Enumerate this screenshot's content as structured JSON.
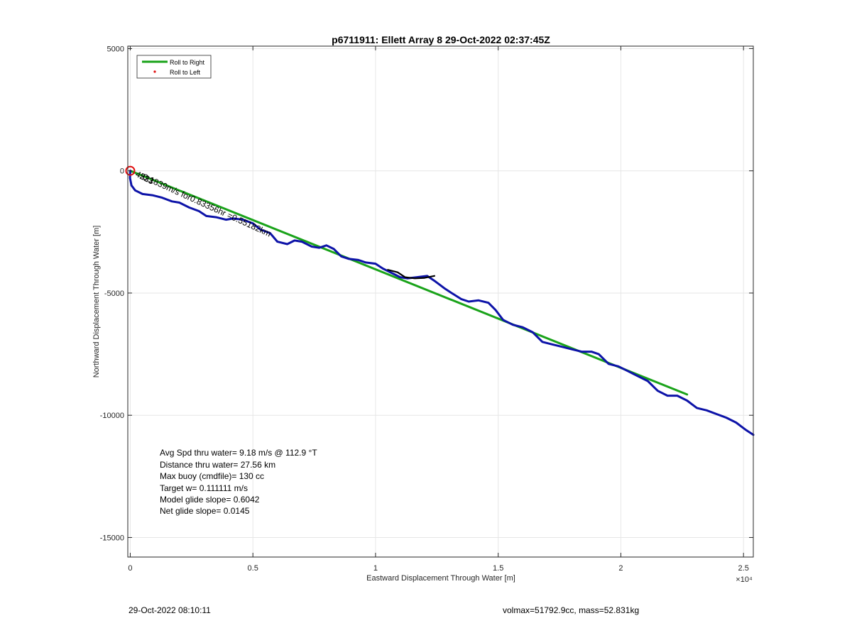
{
  "chart_data": {
    "type": "line",
    "title": "p6711911: Ellett Array 8 29-Oct-2022 02:37:45Z",
    "xlabel": "Eastward Displacement Through Water [m]",
    "ylabel": "Northward Displacement Through Water [m]",
    "x_exponent_label": "×10⁴",
    "xlim": [
      -0.01,
      2.54
    ],
    "x_scale_factor": 10000,
    "ylim": [
      -15800,
      5100
    ],
    "xticks": [
      0,
      0.5,
      1,
      1.5,
      2,
      2.5
    ],
    "xtick_labels": [
      "0",
      "0.5",
      "1",
      "1.5",
      "2",
      "2.5"
    ],
    "yticks": [
      5000,
      0,
      -5000,
      -10000,
      -15000
    ],
    "ytick_labels": [
      "5000",
      "0",
      "-5000",
      "-10000",
      "-15000"
    ],
    "grid": true,
    "legend_position": "top-left",
    "legend": [
      {
        "label": "Roll to Right",
        "color": "#1aa31a",
        "style": "line"
      },
      {
        "label": "Roll to Left",
        "color": "#e01010",
        "style": "dot"
      }
    ],
    "series": [
      {
        "name": "Roll to Right",
        "color": "#1aa31a",
        "x": [
          0.0,
          2.27
        ],
        "y": [
          0,
          -9150
        ]
      },
      {
        "color": "#0d13a8",
        "x": [
          0.0,
          -0.001,
          0.005,
          0.02,
          0.05,
          0.09,
          0.13,
          0.17,
          0.2,
          0.24,
          0.28,
          0.31,
          0.35,
          0.39,
          0.42,
          0.46,
          0.5,
          0.53,
          0.57,
          0.6,
          0.64,
          0.67,
          0.7,
          0.74,
          0.77,
          0.8,
          0.83,
          0.86,
          0.89,
          0.93,
          0.96,
          1.0,
          1.03,
          1.07,
          1.1,
          1.13,
          1.17,
          1.21,
          1.24,
          1.28,
          1.31,
          1.35,
          1.38,
          1.42,
          1.46,
          1.49,
          1.52,
          1.56,
          1.6,
          1.64,
          1.68,
          1.72,
          1.76,
          1.8,
          1.84,
          1.88,
          1.91,
          1.95,
          1.99,
          2.03,
          2.07,
          2.11,
          2.15,
          2.19,
          2.23,
          2.27,
          2.31,
          2.35,
          2.39,
          2.43,
          2.47,
          2.51,
          2.54
        ],
        "y": [
          0,
          -300,
          -600,
          -800,
          -950,
          -1000,
          -1100,
          -1250,
          -1300,
          -1500,
          -1650,
          -1850,
          -1900,
          -2000,
          -1950,
          -2000,
          -2150,
          -2400,
          -2550,
          -2900,
          -3000,
          -2850,
          -2900,
          -3100,
          -3150,
          -3050,
          -3200,
          -3500,
          -3600,
          -3650,
          -3750,
          -3800,
          -4000,
          -4200,
          -4350,
          -4400,
          -4350,
          -4300,
          -4500,
          -4800,
          -5000,
          -5250,
          -5350,
          -5300,
          -5400,
          -5700,
          -6100,
          -6300,
          -6400,
          -6600,
          -7000,
          -7100,
          -7200,
          -7300,
          -7400,
          -7400,
          -7500,
          -7900,
          -8000,
          -8200,
          -8400,
          -8600,
          -9000,
          -9200,
          -9200,
          -9400,
          -9700,
          -9800,
          -9950,
          -10100,
          -10300,
          -10600,
          -10800
        ]
      },
      {
        "color": "#000000",
        "x": [
          1.05,
          1.09,
          1.12,
          1.16,
          1.2,
          1.24
        ],
        "y": [
          -4050,
          -4150,
          -4350,
          -4400,
          -4380,
          -4300
        ]
      }
    ],
    "marker": {
      "x": 0.0,
      "y": 0,
      "color": "#e01010"
    },
    "rotated_label": "0.1839m/s for0.83356hr =0.55182km",
    "overlap_labels": [
      "453",
      "22",
      "23",
      "3"
    ],
    "annotations": [
      "Avg Spd thru water=  9.18 m/s @ 112.9 °T",
      "Distance thru water= 27.56 km",
      "Max buoy (cmdfile)= 130 cc",
      "Target w= 0.111111 m/s",
      "Model glide slope= 0.6042",
      "Net glide slope= 0.0145"
    ]
  },
  "footer": {
    "left": "29-Oct-2022 08:10:11",
    "right": "volmax=51792.9cc, mass=52.831kg"
  }
}
